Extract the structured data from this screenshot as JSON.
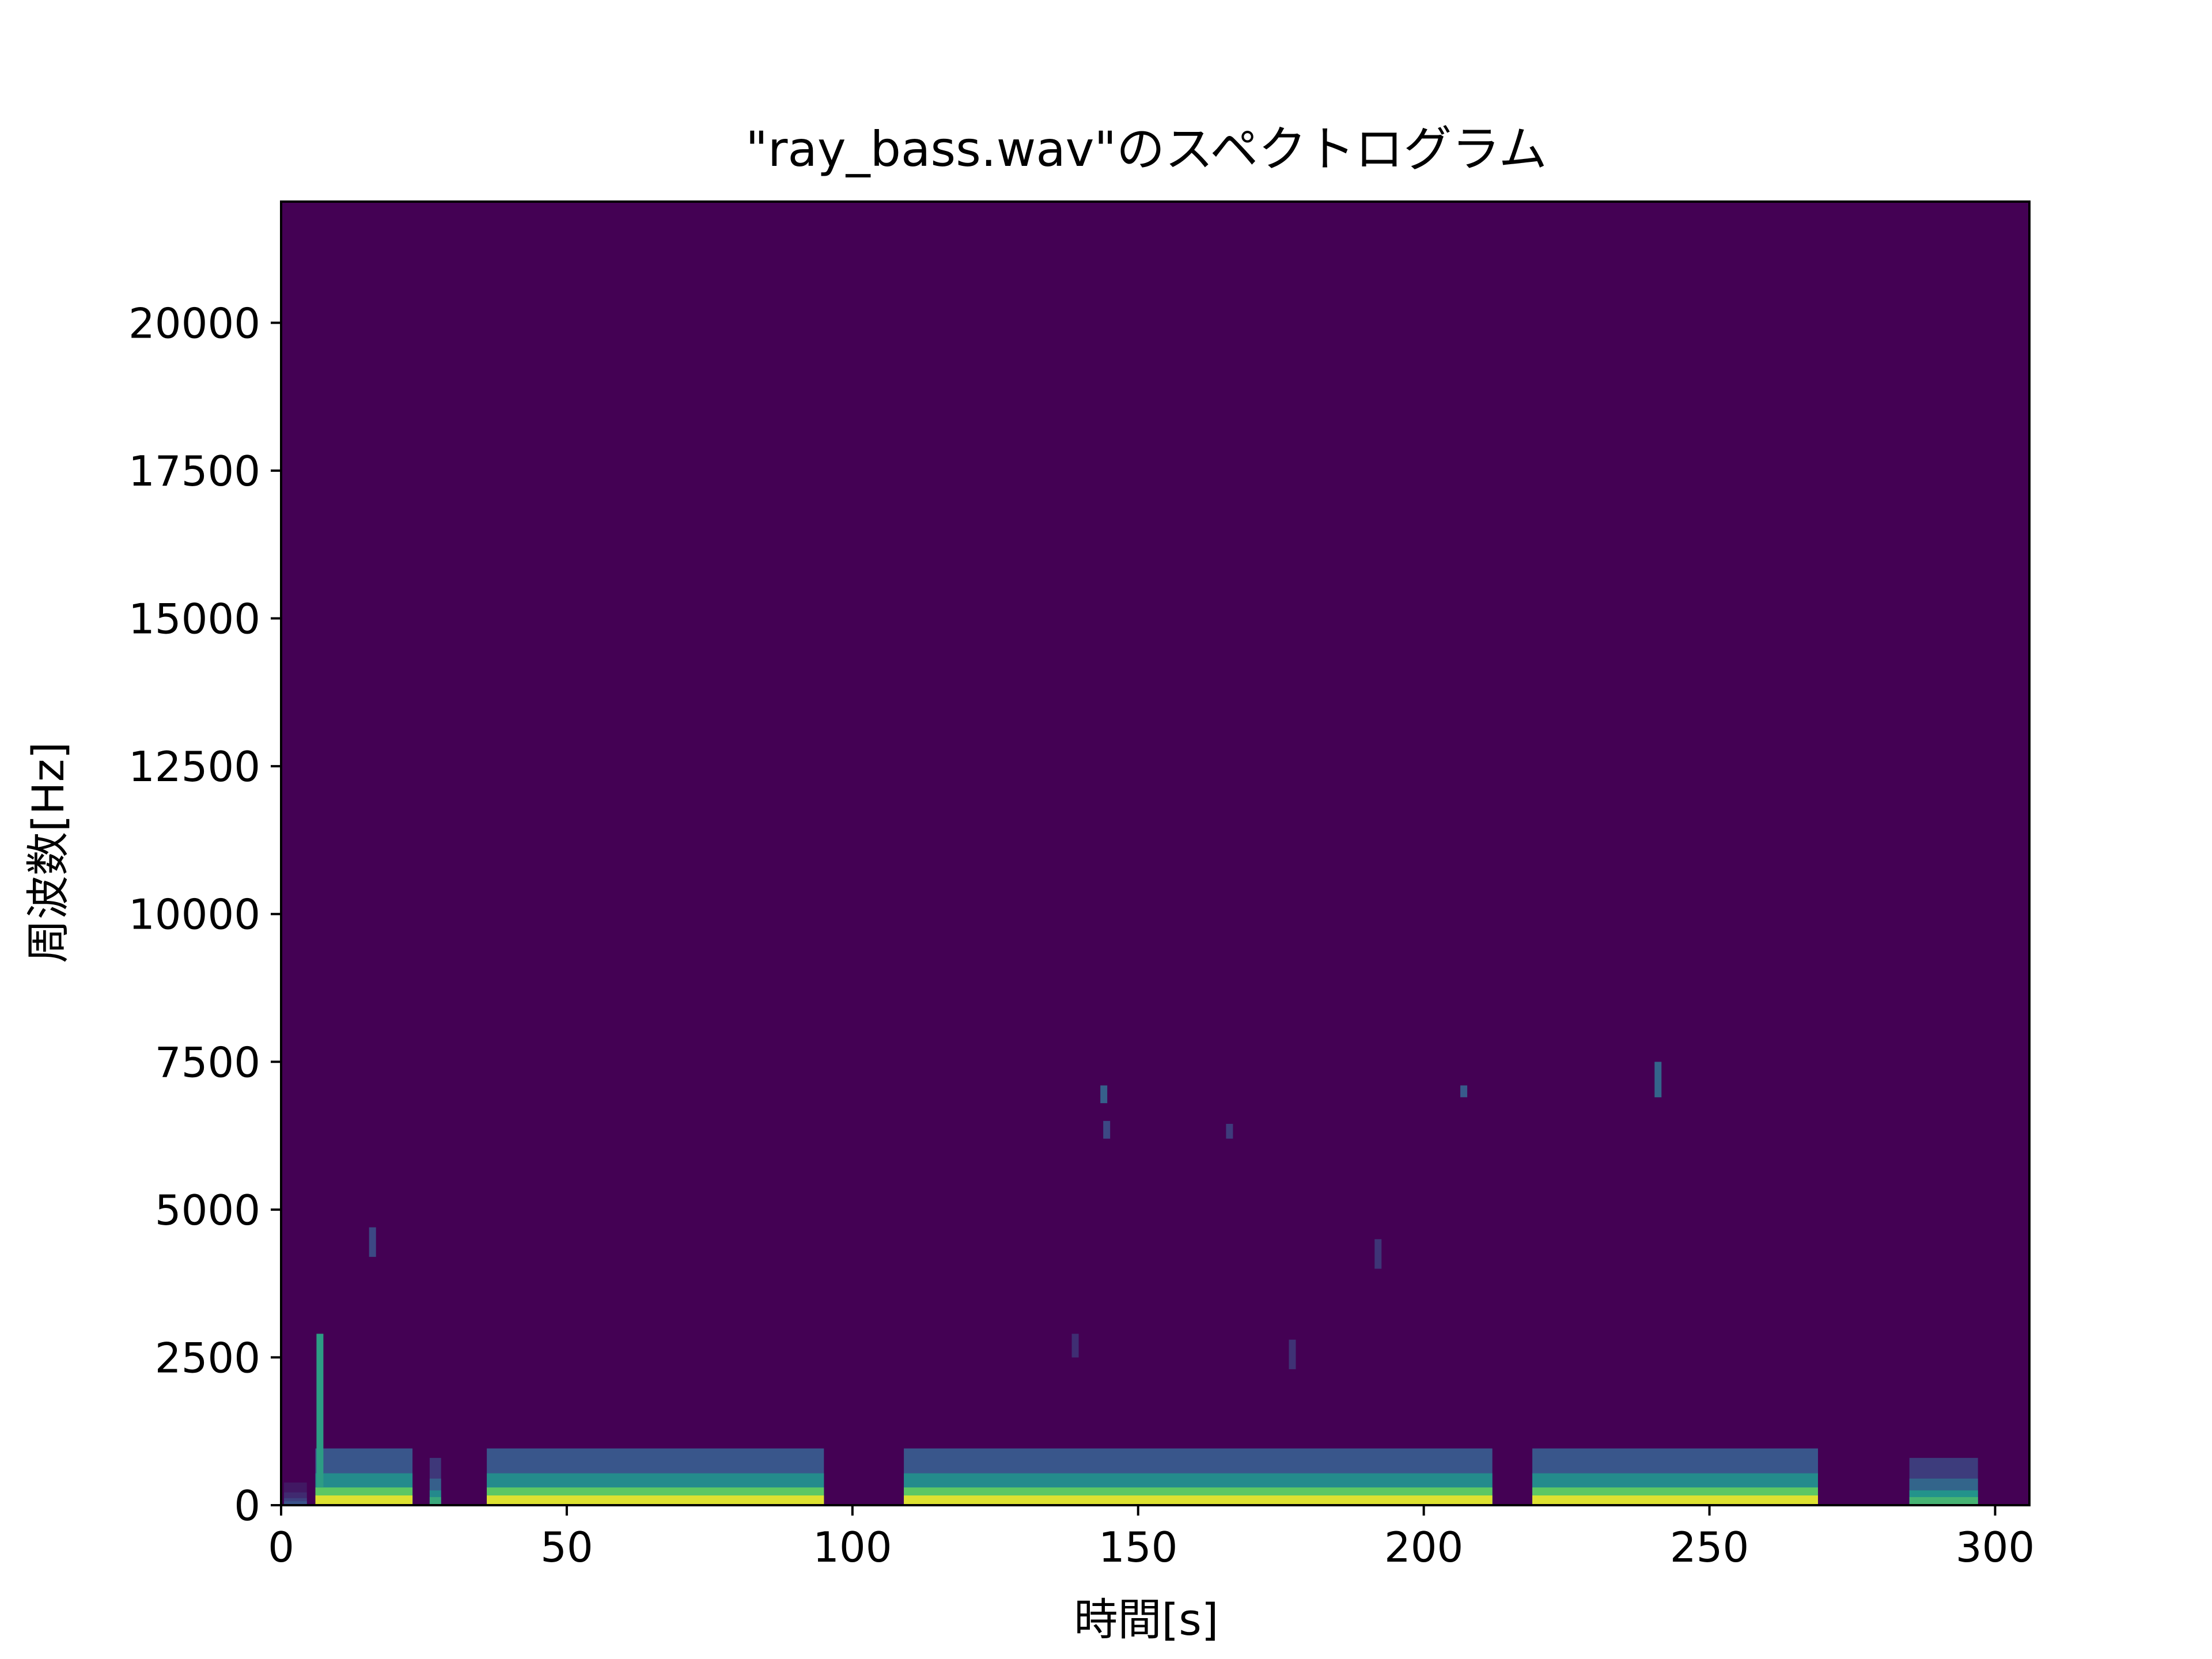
{
  "chart_data": {
    "type": "heatmap",
    "title": "\"ray_bass.wav\"のスペクトログラム",
    "xlabel": "時間[s]",
    "ylabel": "周波数[Hz]",
    "xlim": [
      0,
      306
    ],
    "ylim": [
      0,
      22050
    ],
    "x_ticks": [
      0,
      50,
      100,
      150,
      200,
      250,
      300
    ],
    "x_tick_labels": [
      "0",
      "50",
      "100",
      "150",
      "200",
      "250",
      "300"
    ],
    "y_ticks": [
      0,
      2500,
      5000,
      7500,
      10000,
      12500,
      15000,
      17500,
      20000
    ],
    "y_tick_labels": [
      "0",
      "2500",
      "5000",
      "7500",
      "10000",
      "12500",
      "15000",
      "17500",
      "20000"
    ],
    "grid": false,
    "colormap": "viridis",
    "background_color": "#440154",
    "energy_bands": [
      {
        "t_start": 0.5,
        "t_end": 4.5,
        "f_max": 120,
        "level": 0.25
      },
      {
        "t_start": 6,
        "t_end": 23,
        "f_max": 300,
        "level": 0.95
      },
      {
        "t_start": 26,
        "t_end": 28,
        "f_max": 250,
        "level": 0.6
      },
      {
        "t_start": 36,
        "t_end": 95,
        "f_max": 300,
        "level": 0.95
      },
      {
        "t_start": 109,
        "t_end": 212,
        "f_max": 300,
        "level": 0.95
      },
      {
        "t_start": 219,
        "t_end": 269,
        "f_max": 300,
        "level": 0.95
      },
      {
        "t_start": 285,
        "t_end": 297,
        "f_max": 250,
        "level": 0.65
      }
    ],
    "spots": [
      {
        "t": 6.8,
        "f_low": 300,
        "f_high": 2900,
        "level": 0.55
      },
      {
        "t": 16,
        "f_low": 4200,
        "f_high": 4700,
        "level": 0.22
      },
      {
        "t": 144,
        "f_low": 6800,
        "f_high": 7100,
        "level": 0.3
      },
      {
        "t": 144.5,
        "f_low": 6200,
        "f_high": 6500,
        "level": 0.22
      },
      {
        "t": 166,
        "f_low": 6200,
        "f_high": 6450,
        "level": 0.18
      },
      {
        "t": 207,
        "f_low": 6900,
        "f_high": 7100,
        "level": 0.28
      },
      {
        "t": 241,
        "f_low": 6900,
        "f_high": 7500,
        "level": 0.32
      },
      {
        "t": 192,
        "f_low": 4000,
        "f_high": 4500,
        "level": 0.16
      },
      {
        "t": 177,
        "f_low": 2300,
        "f_high": 2800,
        "level": 0.15
      },
      {
        "t": 139,
        "f_low": 2500,
        "f_high": 2900,
        "level": 0.14
      }
    ]
  }
}
